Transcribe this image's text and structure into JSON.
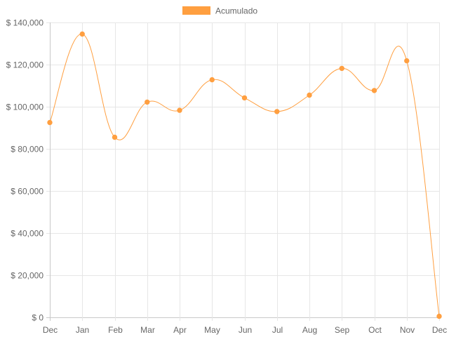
{
  "chart_data": {
    "type": "line",
    "categories": [
      "Dec",
      "Jan",
      "Feb",
      "Mar",
      "Apr",
      "May",
      "Jun",
      "Jul",
      "Aug",
      "Sep",
      "Oct",
      "Nov",
      "Dec"
    ],
    "series": [
      {
        "name": "Acumulado",
        "values": [
          92500,
          134500,
          85500,
          102200,
          98300,
          112800,
          104200,
          97700,
          105500,
          118200,
          107700,
          121800,
          500
        ]
      }
    ],
    "ylim": [
      0,
      140000
    ],
    "yticks": [
      0,
      20000,
      40000,
      60000,
      80000,
      100000,
      120000,
      140000
    ],
    "ytick_labels": [
      "$ 0",
      "$ 20,000",
      "$ 40,000",
      "$ 60,000",
      "$ 80,000",
      "$ 100,000",
      "$ 120,000",
      "$ 140,000"
    ],
    "grid": true,
    "legend": "top-center",
    "colors": {
      "series": "#ff9f40",
      "grid": "#e6e6e6",
      "axis": "#c8c8c8",
      "text": "#666666"
    }
  }
}
